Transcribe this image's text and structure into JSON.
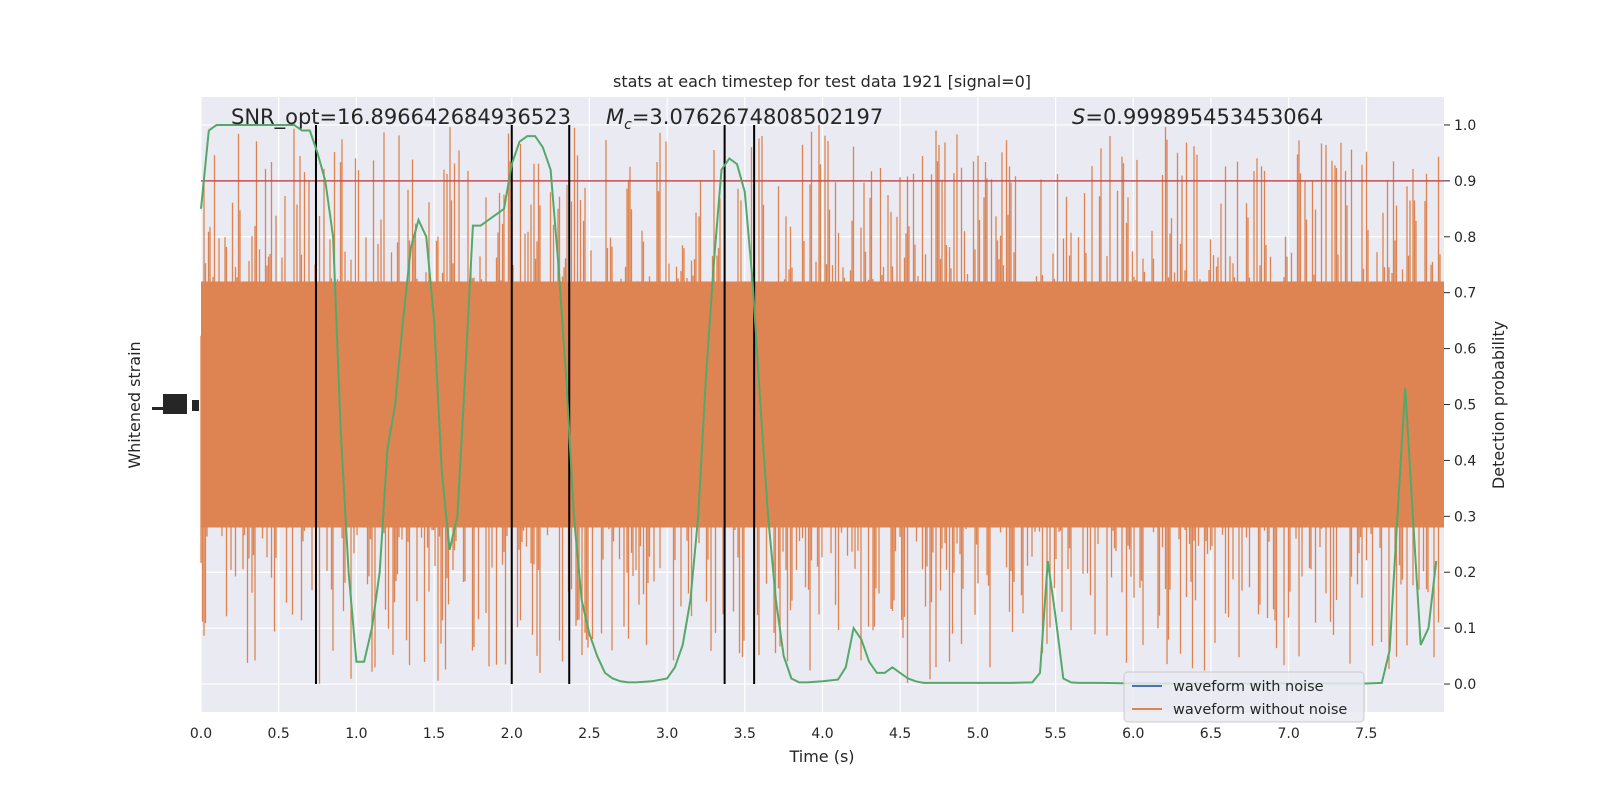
{
  "chart_data": {
    "type": "line",
    "title": "stats at each timestep for test data 1921 [signal=0]",
    "xlabel": "Time (s)",
    "ylabel_left": "Whitened strain",
    "ylabel_right": "Detection probability",
    "xlim": [
      0,
      8
    ],
    "ylim_right": [
      -0.05,
      1.05
    ],
    "x_ticks": [
      "0.0",
      "0.5",
      "1.0",
      "1.5",
      "2.0",
      "2.5",
      "3.0",
      "3.5",
      "4.0",
      "4.5",
      "5.0",
      "5.5",
      "6.0",
      "6.5",
      "7.0",
      "7.5"
    ],
    "y_ticks_right": [
      "0.0",
      "0.1",
      "0.2",
      "0.3",
      "0.4",
      "0.5",
      "0.6",
      "0.7",
      "0.8",
      "0.9",
      "1.0"
    ],
    "grid": true,
    "annotations": {
      "snr": "SNR_opt=16.896642684936523",
      "mc_prefix": "M",
      "mc_sub": "c",
      "mc_value": "=3.0762674808502197",
      "s_prefix": "S",
      "s_value": "=0.999895453453064"
    },
    "threshold": 0.9,
    "detection_lines_x": [
      0.74,
      2.0,
      2.37,
      3.37,
      3.56
    ],
    "legend": {
      "placement": "lower-right",
      "entries": [
        {
          "label": "waveform with noise",
          "color": "#4c72b0"
        },
        {
          "label": "waveform without noise",
          "color": "#dd8452"
        }
      ]
    },
    "series": [
      {
        "name": "Detection probability",
        "color": "#55a868",
        "x": [
          0.0,
          0.05,
          0.1,
          0.2,
          0.3,
          0.4,
          0.5,
          0.6,
          0.65,
          0.7,
          0.75,
          0.8,
          0.85,
          0.9,
          0.95,
          1.0,
          1.05,
          1.1,
          1.15,
          1.2,
          1.25,
          1.3,
          1.35,
          1.4,
          1.45,
          1.5,
          1.55,
          1.6,
          1.65,
          1.7,
          1.75,
          1.8,
          1.85,
          1.9,
          1.95,
          2.0,
          2.05,
          2.1,
          2.15,
          2.2,
          2.25,
          2.3,
          2.35,
          2.4,
          2.45,
          2.5,
          2.55,
          2.6,
          2.65,
          2.7,
          2.75,
          2.8,
          2.9,
          3.0,
          3.05,
          3.1,
          3.15,
          3.2,
          3.25,
          3.3,
          3.35,
          3.4,
          3.45,
          3.5,
          3.55,
          3.6,
          3.65,
          3.7,
          3.75,
          3.8,
          3.85,
          3.9,
          4.0,
          4.1,
          4.15,
          4.2,
          4.25,
          4.3,
          4.35,
          4.4,
          4.45,
          4.5,
          4.55,
          4.6,
          4.65,
          4.7,
          4.8,
          5.0,
          5.2,
          5.35,
          5.4,
          5.45,
          5.5,
          5.55,
          5.6,
          5.65,
          5.7,
          5.8,
          6.0,
          6.5,
          7.0,
          7.5,
          7.6,
          7.65,
          7.7,
          7.75,
          7.8,
          7.85,
          7.9,
          7.95
        ],
        "y": [
          0.85,
          0.99,
          1.0,
          1.0,
          1.0,
          1.0,
          1.0,
          1.0,
          0.99,
          0.99,
          0.95,
          0.9,
          0.8,
          0.45,
          0.2,
          0.04,
          0.04,
          0.1,
          0.2,
          0.42,
          0.5,
          0.65,
          0.78,
          0.83,
          0.8,
          0.65,
          0.38,
          0.24,
          0.3,
          0.55,
          0.82,
          0.82,
          0.83,
          0.84,
          0.85,
          0.93,
          0.97,
          0.98,
          0.98,
          0.96,
          0.92,
          0.75,
          0.55,
          0.3,
          0.15,
          0.09,
          0.05,
          0.02,
          0.01,
          0.005,
          0.003,
          0.003,
          0.005,
          0.01,
          0.03,
          0.07,
          0.15,
          0.3,
          0.55,
          0.75,
          0.92,
          0.94,
          0.93,
          0.88,
          0.72,
          0.5,
          0.3,
          0.15,
          0.05,
          0.01,
          0.003,
          0.003,
          0.005,
          0.008,
          0.03,
          0.1,
          0.08,
          0.04,
          0.02,
          0.02,
          0.03,
          0.02,
          0.01,
          0.005,
          0.002,
          0.002,
          0.002,
          0.002,
          0.002,
          0.003,
          0.02,
          0.22,
          0.12,
          0.01,
          0.003,
          0.002,
          0.002,
          0.002,
          0.001,
          0.001,
          0.001,
          0.001,
          0.002,
          0.06,
          0.3,
          0.53,
          0.3,
          0.07,
          0.1,
          0.22
        ]
      }
    ],
    "strain_band": {
      "color": "#dd8452",
      "core": [
        0.28,
        0.72
      ],
      "spike_max": 1.0,
      "spike_min": 0.0
    }
  }
}
